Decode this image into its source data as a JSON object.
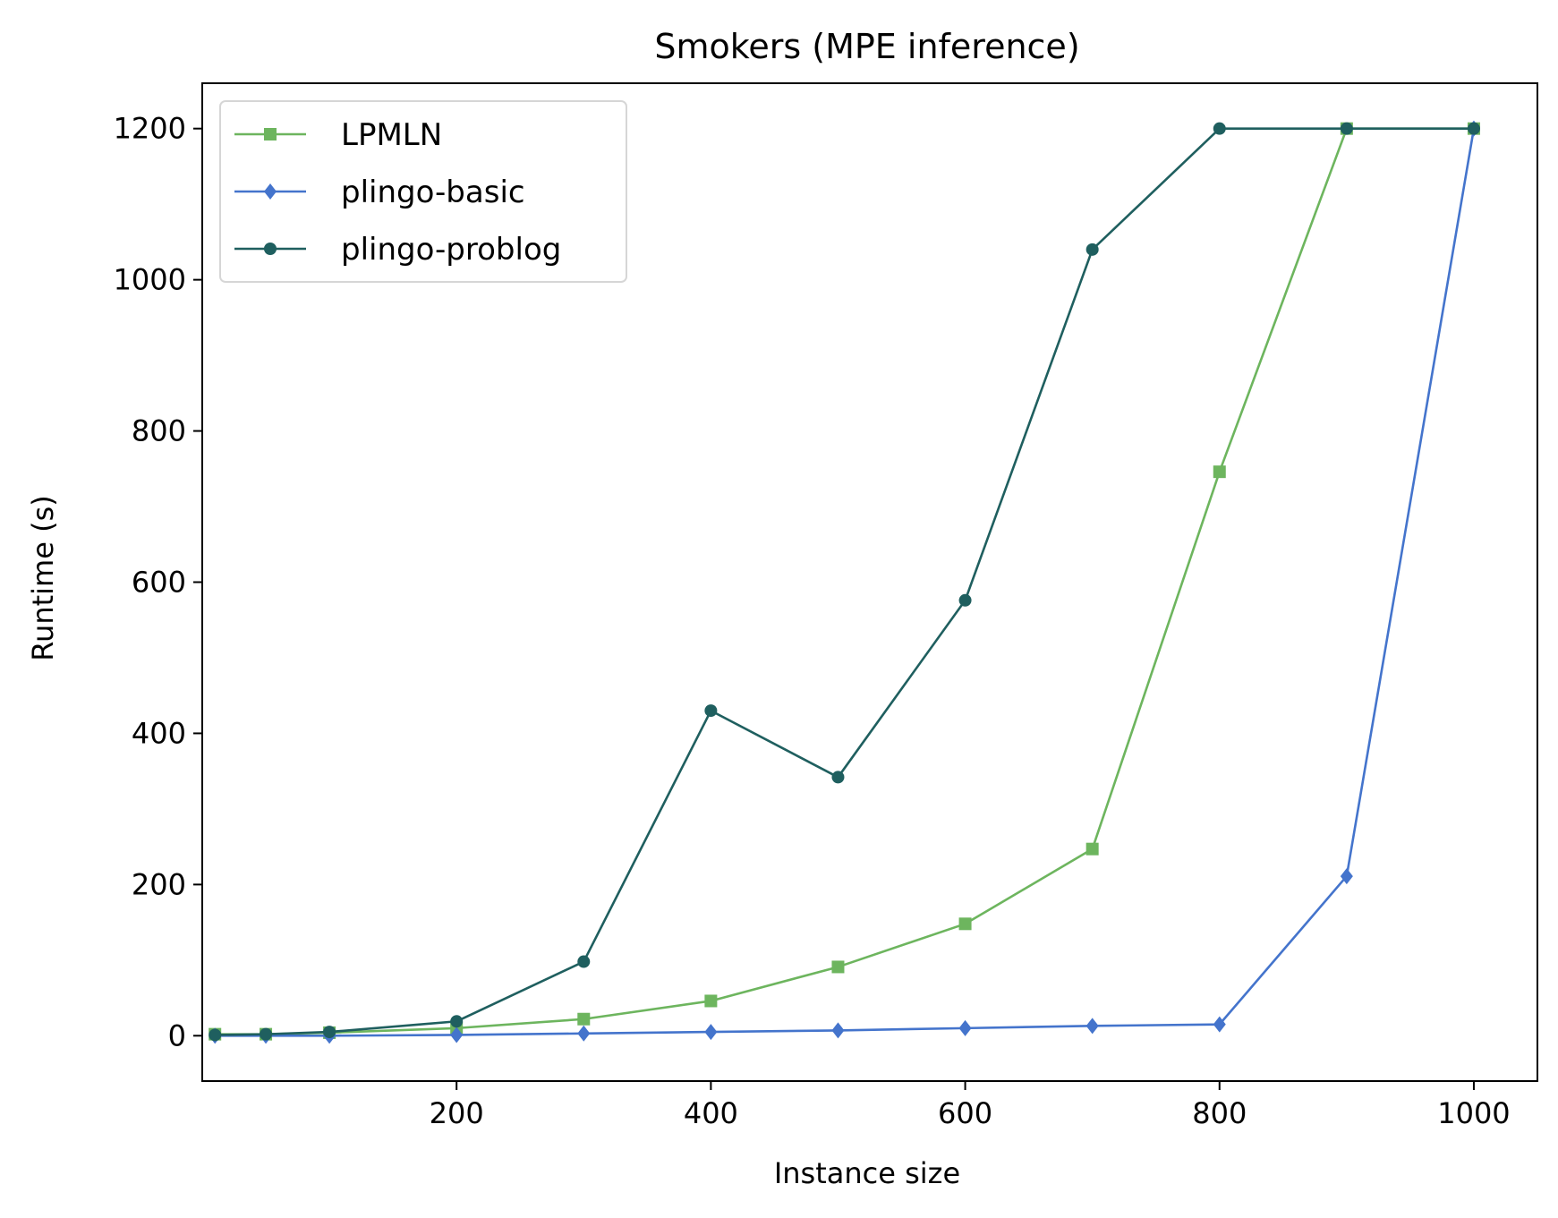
{
  "chart_data": {
    "type": "line",
    "title": "Smokers (MPE inference)",
    "xlabel": "Instance size",
    "ylabel": "Runtime (s)",
    "xlim": [
      0,
      1050
    ],
    "ylim": [
      -60,
      1260
    ],
    "xticks": [
      200,
      400,
      600,
      800,
      1000
    ],
    "yticks": [
      0,
      200,
      400,
      600,
      800,
      1000,
      1200
    ],
    "grid": false,
    "legend_position": "upper-left",
    "series": [
      {
        "name": "LPMLN",
        "color": "#6db55e",
        "marker": "square",
        "x": [
          10,
          50,
          100,
          200,
          300,
          400,
          500,
          600,
          700,
          800,
          900,
          1000
        ],
        "values": [
          2,
          2,
          4,
          10,
          22,
          46,
          91,
          148,
          247,
          746,
          1200,
          1200
        ]
      },
      {
        "name": "plingo-basic",
        "color": "#4474cc",
        "marker": "diamond",
        "x": [
          10,
          50,
          100,
          200,
          300,
          400,
          500,
          600,
          700,
          800,
          900,
          1000
        ],
        "values": [
          0,
          0,
          0,
          1,
          3,
          5,
          7,
          10,
          13,
          15,
          211,
          1200
        ]
      },
      {
        "name": "plingo-problog",
        "color": "#1f5f5f",
        "marker": "circle",
        "x": [
          10,
          50,
          100,
          200,
          300,
          400,
          500,
          600,
          700,
          800,
          900,
          1000
        ],
        "values": [
          1,
          2,
          5,
          19,
          98,
          430,
          342,
          576,
          1040,
          1200,
          1200,
          1200
        ]
      }
    ]
  }
}
